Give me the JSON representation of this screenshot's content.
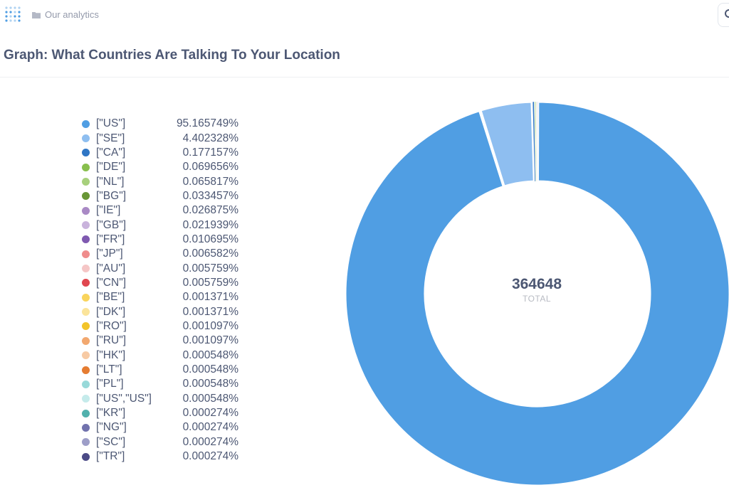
{
  "topbar": {
    "breadcrumb": "Our analytics"
  },
  "header": {
    "title": "Graph: What Countries Are Talking To Your Location"
  },
  "donut": {
    "total_value": "364648",
    "total_label": "TOTAL"
  },
  "colors": {
    "primary": "#509ee3",
    "text": "#4c5773",
    "muted": "#949aab"
  },
  "chart_data": {
    "type": "pie",
    "total": 364648,
    "categories": [
      "[\"US\"]",
      "[\"SE\"]",
      "[\"CA\"]",
      "[\"DE\"]",
      "[\"NL\"]",
      "[\"BG\"]",
      "[\"IE\"]",
      "[\"GB\"]",
      "[\"FR\"]",
      "[\"JP\"]",
      "[\"AU\"]",
      "[\"CN\"]",
      "[\"BE\"]",
      "[\"DK\"]",
      "[\"RO\"]",
      "[\"RU\"]",
      "[\"HK\"]",
      "[\"LT\"]",
      "[\"PL\"]",
      "[\"US\",\"US\"]",
      "[\"KR\"]",
      "[\"NG\"]",
      "[\"SC\"]",
      "[\"TR\"]"
    ],
    "values": [
      95.165749,
      4.402328,
      0.177157,
      0.069656,
      0.065817,
      0.033457,
      0.026875,
      0.021939,
      0.010695,
      0.006582,
      0.005759,
      0.005759,
      0.001371,
      0.001371,
      0.001097,
      0.001097,
      0.000548,
      0.000548,
      0.000548,
      0.000548,
      0.000274,
      0.000274,
      0.000274,
      0.000274
    ],
    "labels": [
      "95.165749%",
      "4.402328%",
      "0.177157%",
      "0.069656%",
      "0.065817%",
      "0.033457%",
      "0.026875%",
      "0.021939%",
      "0.010695%",
      "0.006582%",
      "0.005759%",
      "0.005759%",
      "0.001371%",
      "0.001371%",
      "0.001097%",
      "0.001097%",
      "0.000548%",
      "0.000548%",
      "0.000548%",
      "0.000548%",
      "0.000274%",
      "0.000274%",
      "0.000274%",
      "0.000274%"
    ],
    "colors": [
      "#509ee3",
      "#8ebef0",
      "#2f76c5",
      "#88bf4d",
      "#a7d07c",
      "#689636",
      "#a989c5",
      "#c9b3dc",
      "#7f59b0",
      "#ef8c8c",
      "#f5c6c6",
      "#e0474f",
      "#f9d45c",
      "#fbe49a",
      "#f2c42a",
      "#f2a86f",
      "#f7caa4",
      "#e57c31",
      "#98d9d9",
      "#c5ebeb",
      "#51b1ad",
      "#7172ad",
      "#9d9ec8",
      "#4b4a86"
    ],
    "legend_position": "left"
  }
}
